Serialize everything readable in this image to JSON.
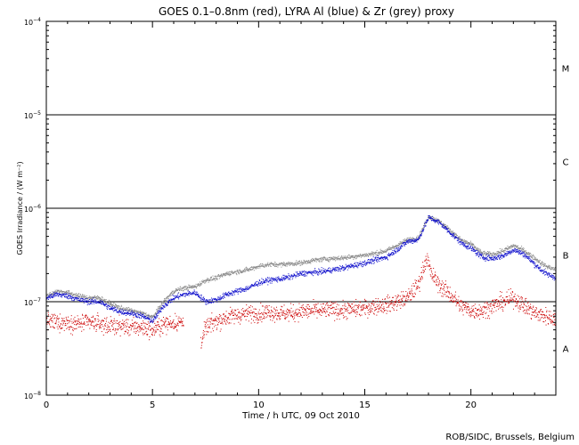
{
  "chart_data": {
    "type": "scatter",
    "title": "GOES 0.1–0.8nm (red), LYRA Al (blue) & Zr (grey) proxy",
    "xlabel": "Time / h UTC, 09 Oct 2010",
    "ylabel": "GOES Irradiance / (W m⁻²)",
    "y_scale": "log",
    "xlim": [
      0,
      24
    ],
    "ylim": [
      1e-08,
      0.0001
    ],
    "x_ticks": [
      0,
      5,
      10,
      15,
      20
    ],
    "y_ticks": [
      {
        "value": 1e-08,
        "mantissa": "10",
        "exponent": "−8"
      },
      {
        "value": 1e-07,
        "mantissa": "10",
        "exponent": "−7"
      },
      {
        "value": 1e-06,
        "mantissa": "10",
        "exponent": "−6"
      },
      {
        "value": 1e-05,
        "mantissa": "10",
        "exponent": "−5"
      },
      {
        "value": 0.0001,
        "mantissa": "10",
        "exponent": "−4"
      }
    ],
    "class_lines": [
      1e-07,
      1e-06,
      1e-05
    ],
    "flare_classes": [
      {
        "label": "A",
        "value": 3.16e-08
      },
      {
        "label": "B",
        "value": 3.16e-07
      },
      {
        "label": "C",
        "value": 3.16e-06
      },
      {
        "label": "M",
        "value": 3.16e-05
      }
    ],
    "series": [
      {
        "color": "#cc0000",
        "x": [
          0,
          0.5,
          1,
          1.5,
          2,
          2.5,
          3,
          3.5,
          4,
          4.5,
          5,
          5.5,
          6,
          6.4,
          7.3,
          7.5,
          8,
          8.5,
          9,
          9.5,
          10,
          10.5,
          11,
          11.5,
          12,
          12.5,
          13,
          13.5,
          14,
          14.5,
          15,
          15.5,
          16,
          16.5,
          17,
          17.5,
          17.9,
          18.1,
          18.5,
          19,
          19.5,
          20,
          20.5,
          21,
          21.5,
          22,
          22.5,
          23,
          23.5,
          24
        ],
        "y": [
          6.2e-08,
          6e-08,
          6e-08,
          5.8e-08,
          6e-08,
          5.8e-08,
          5.5e-08,
          5.5e-08,
          5.3e-08,
          5.3e-08,
          5e-08,
          5.7e-08,
          6e-08,
          6e-08,
          3.8e-08,
          5.3e-08,
          6.2e-08,
          6.8e-08,
          7.2e-08,
          7.5e-08,
          7.5e-08,
          7.8e-08,
          7.5e-08,
          7.5e-08,
          7.8e-08,
          8e-08,
          8e-08,
          8.2e-08,
          8e-08,
          8.3e-08,
          8.5e-08,
          9e-08,
          9.2e-08,
          1e-07,
          1.1e-07,
          1.5e-07,
          3e-07,
          2e-07,
          1.5e-07,
          1.2e-07,
          9e-08,
          8e-08,
          8e-08,
          9e-08,
          1e-07,
          1.1e-07,
          9e-08,
          7.5e-08,
          7e-08,
          6.5e-08
        ]
      },
      {
        "color": "#888888",
        "x": [
          0,
          0.5,
          1,
          1.5,
          2,
          2.5,
          3,
          3.5,
          4,
          4.5,
          5,
          5.5,
          6,
          6.5,
          7,
          7.5,
          8,
          8.5,
          9,
          9.5,
          10,
          10.5,
          11,
          11.5,
          12,
          12.5,
          13,
          13.5,
          14,
          14.5,
          15,
          15.5,
          16,
          16.5,
          17,
          17.5,
          18,
          18.5,
          19,
          19.5,
          20,
          20.5,
          21,
          21.5,
          22,
          22.5,
          23,
          23.5,
          24
        ],
        "y": [
          1.15e-07,
          1.3e-07,
          1.25e-07,
          1.15e-07,
          1.1e-07,
          1.1e-07,
          9.5e-08,
          8.5e-08,
          8e-08,
          7.5e-08,
          6.8e-08,
          1e-07,
          1.3e-07,
          1.4e-07,
          1.45e-07,
          1.7e-07,
          1.8e-07,
          2e-07,
          2.1e-07,
          2.2e-07,
          2.4e-07,
          2.5e-07,
          2.5e-07,
          2.55e-07,
          2.6e-07,
          2.75e-07,
          2.85e-07,
          2.9e-07,
          2.95e-07,
          3.05e-07,
          3.15e-07,
          3.3e-07,
          3.5e-07,
          4e-07,
          4.6e-07,
          4.8e-07,
          8.2e-07,
          7.2e-07,
          5.8e-07,
          4.6e-07,
          4.1e-07,
          3.3e-07,
          3.2e-07,
          3.5e-07,
          4e-07,
          3.5e-07,
          2.9e-07,
          2.4e-07,
          2.2e-07
        ]
      },
      {
        "color": "#1010cc",
        "x": [
          0,
          0.5,
          1,
          1.5,
          2,
          2.5,
          3,
          3.5,
          4,
          4.5,
          5,
          5.5,
          6,
          6.5,
          7,
          7.5,
          8,
          8.5,
          9,
          9.5,
          10,
          10.5,
          11,
          11.5,
          12,
          12.5,
          13,
          13.5,
          14,
          14.5,
          15,
          15.5,
          16,
          16.5,
          17,
          17.5,
          18,
          18.5,
          19,
          19.5,
          20,
          20.5,
          21,
          21.5,
          22,
          22.5,
          23,
          23.5,
          24
        ],
        "y": [
          1.1e-07,
          1.2e-07,
          1.15e-07,
          1.05e-07,
          1e-07,
          1e-07,
          8.5e-08,
          7.8e-08,
          7.5e-08,
          7e-08,
          6.2e-08,
          9e-08,
          1.1e-07,
          1.2e-07,
          1.25e-07,
          1e-07,
          1.05e-07,
          1.2e-07,
          1.3e-07,
          1.4e-07,
          1.6e-07,
          1.7e-07,
          1.75e-07,
          1.85e-07,
          2e-07,
          2.05e-07,
          2.1e-07,
          2.2e-07,
          2.3e-07,
          2.45e-07,
          2.6e-07,
          2.8e-07,
          3e-07,
          3.6e-07,
          4.4e-07,
          4.6e-07,
          8e-07,
          7e-07,
          5.5e-07,
          4.3e-07,
          3.7e-07,
          3e-07,
          2.9e-07,
          3.1e-07,
          3.6e-07,
          3.2e-07,
          2.5e-07,
          2e-07,
          1.8e-07
        ]
      }
    ]
  },
  "footer": {
    "credit": "ROB/SIDC, Brussels, Belgium"
  }
}
